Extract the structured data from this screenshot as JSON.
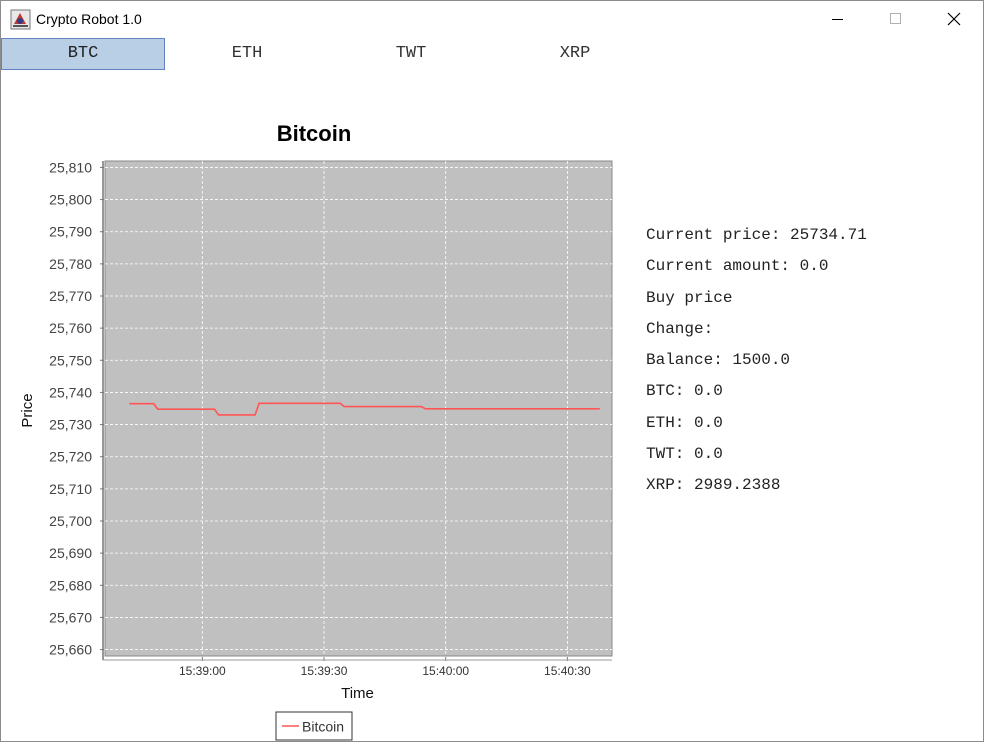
{
  "window": {
    "title": "Crypto Robot 1.0",
    "controls": {
      "minimize": "minimize-icon",
      "maximize": "maximize-icon",
      "close": "close-icon"
    }
  },
  "tabs": [
    {
      "label": "BTC",
      "active": true
    },
    {
      "label": "ETH",
      "active": false
    },
    {
      "label": "TWT",
      "active": false
    },
    {
      "label": "XRP",
      "active": false
    }
  ],
  "info": {
    "current_price": "Current price: 25734.71",
    "current_amount": "Current amount: 0.0",
    "buy_price": "Buy price",
    "change": "Change:",
    "balance": "Balance: 1500.0",
    "btc": "BTC: 0.0",
    "eth": "ETH: 0.0",
    "twt": "TWT: 0.0",
    "xrp": "XRP: 2989.2388"
  },
  "colors": {
    "plot_background": "#c0c0c0",
    "series_line": "#ff5555",
    "active_tab": "#b8cfe5"
  },
  "chart_data": {
    "type": "line",
    "title": "Bitcoin",
    "xlabel": "Time",
    "ylabel": "Price",
    "legend": "bottom",
    "grid": true,
    "ylim": [
      25658,
      25812
    ],
    "yticks": [
      25810,
      25800,
      25790,
      25780,
      25770,
      25760,
      25750,
      25740,
      25730,
      25720,
      25710,
      25700,
      25690,
      25680,
      25670,
      25660
    ],
    "ytick_labels": [
      "25,810",
      "25,800",
      "25,790",
      "25,780",
      "25,770",
      "25,760",
      "25,750",
      "25,740",
      "25,730",
      "25,720",
      "25,710",
      "25,700",
      "25,690",
      "25,680",
      "25,670",
      "25,660"
    ],
    "xlim": [
      "15:38:36",
      "15:40:41"
    ],
    "xticks": [
      "15:39:00",
      "15:39:30",
      "15:40:00",
      "15:40:30"
    ],
    "series": [
      {
        "name": "Bitcoin",
        "points": [
          [
            "15:38:42",
            25736.5
          ],
          [
            "15:38:48",
            25736.5
          ],
          [
            "15:38:49",
            25734.8
          ],
          [
            "15:39:03",
            25734.8
          ],
          [
            "15:39:04",
            25733.0
          ],
          [
            "15:39:13",
            25733.0
          ],
          [
            "15:39:14",
            25736.6
          ],
          [
            "15:39:34",
            25736.6
          ],
          [
            "15:39:35",
            25735.6
          ],
          [
            "15:39:54",
            25735.6
          ],
          [
            "15:39:55",
            25734.9
          ],
          [
            "15:40:38",
            25734.9
          ]
        ]
      }
    ]
  }
}
